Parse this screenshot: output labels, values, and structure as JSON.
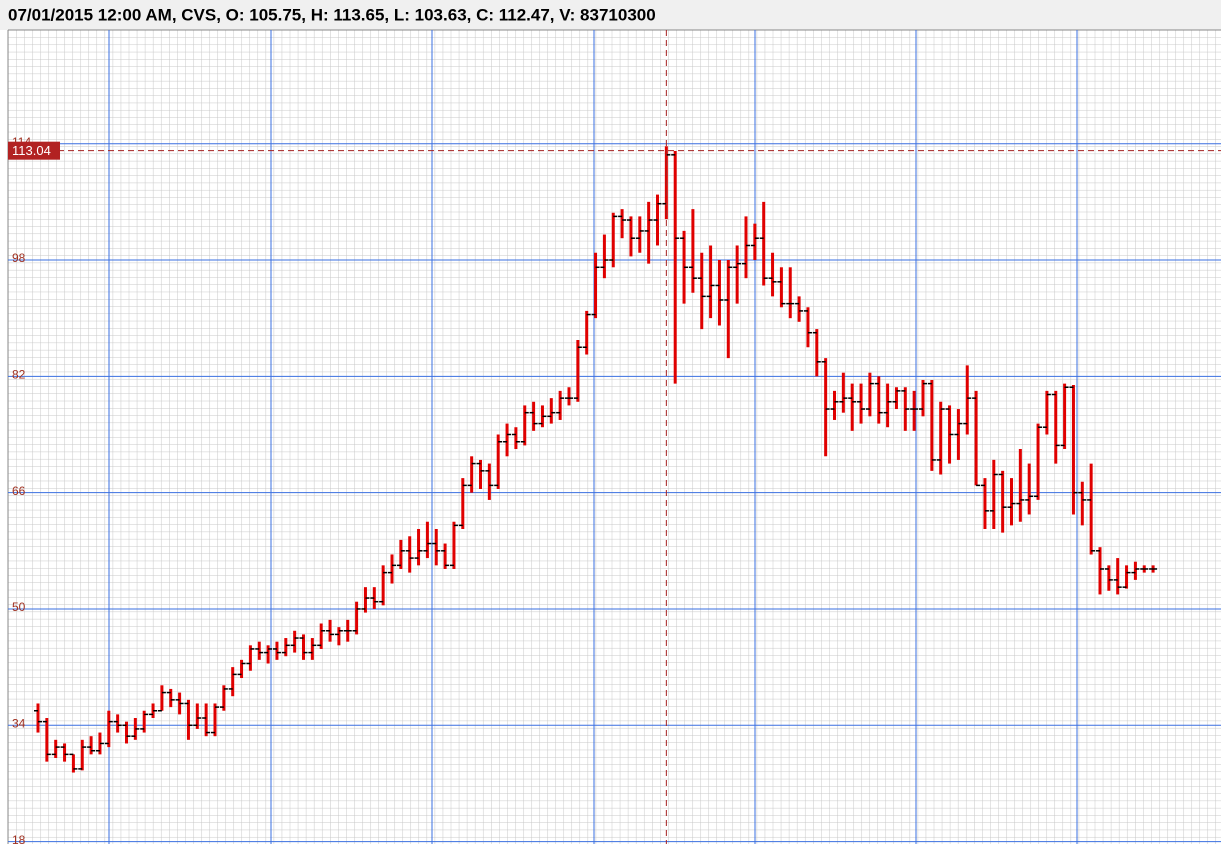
{
  "chart_data": {
    "type": "ohlc",
    "header": "07/01/2015 12:00 AM, CVS, O: 105.75, H: 113.65, L: 103.63, C: 112.47, V: 83710300",
    "color": "#e00000",
    "ylim": [
      17.67,
      129.64
    ],
    "yticks": [
      18,
      34,
      50,
      66,
      82,
      98,
      114
    ],
    "grid": true,
    "crosshair": {
      "value": 113.04,
      "bar": 71
    },
    "open": [
      36,
      34.5,
      30,
      31,
      30,
      28,
      31,
      30.5,
      31.5,
      34.5,
      34,
      32.5,
      33.5,
      35.5,
      36,
      38.5,
      37.5,
      37,
      34,
      35,
      33,
      36.5,
      39,
      41,
      42.5,
      44.5,
      44,
      44.5,
      44,
      45,
      46,
      44,
      45,
      47,
      46.5,
      47,
      47,
      50,
      51.5,
      51,
      55,
      56,
      58,
      57,
      58,
      59,
      58,
      56,
      61.5,
      67,
      70,
      69,
      67,
      73,
      74,
      73,
      77,
      75.5,
      76.5,
      77,
      79,
      79,
      86,
      90.5,
      97,
      98,
      104,
      103.5,
      101,
      102,
      103.5,
      105.75,
      112.47,
      101,
      97,
      95.5,
      93,
      94.5,
      92.5,
      97,
      97.5,
      100,
      101,
      95.5,
      95,
      92,
      92,
      91,
      88,
      84,
      77.5,
      78.5,
      79,
      78.5,
      77.5,
      81,
      77,
      78.5,
      80,
      77.5,
      77.5,
      81,
      70.5,
      77.5,
      74,
      75.5,
      79,
      67,
      63.5,
      68.5,
      64,
      64.5,
      65,
      65.5,
      75,
      79.5,
      72.5,
      80.5,
      66,
      65,
      58,
      55.5,
      54,
      53,
      55,
      55.5,
      55.5
    ],
    "high": [
      37,
      35,
      32,
      31.5,
      30,
      32,
      32.5,
      33,
      36,
      35.5,
      34.5,
      35,
      36,
      37,
      39.5,
      39,
      38.5,
      37.5,
      37,
      37,
      37,
      39.5,
      42,
      43,
      45,
      45.5,
      45,
      45.5,
      46,
      47,
      46.5,
      46,
      48,
      48.5,
      47.5,
      48.5,
      51,
      53,
      53,
      56,
      57.5,
      59.5,
      60,
      61,
      62,
      61,
      59,
      62,
      68,
      71,
      70.5,
      70,
      74,
      75.5,
      75,
      78,
      78.5,
      78,
      79,
      80,
      80.5,
      87,
      91,
      99,
      101.5,
      104.5,
      105,
      104,
      104,
      106,
      107,
      113.65,
      113,
      102,
      105,
      99,
      100,
      98,
      98,
      100,
      104,
      103,
      106,
      99,
      97,
      97,
      93,
      91.5,
      88.5,
      84.5,
      80,
      82.5,
      81,
      81,
      82.5,
      82,
      81,
      80.5,
      80.5,
      80,
      81.5,
      81.5,
      78.5,
      78,
      77.5,
      83.5,
      80,
      68,
      70.5,
      69,
      68,
      72,
      70,
      75.5,
      80,
      80,
      81,
      80.8,
      67.5,
      70,
      58.5,
      56,
      57,
      56,
      56.5,
      56,
      56
    ],
    "low": [
      33,
      29,
      29.5,
      29,
      27.5,
      27.8,
      30,
      30,
      31,
      33,
      31.5,
      32,
      33,
      35,
      36,
      36.5,
      35.5,
      32,
      33.5,
      32.5,
      32.5,
      36,
      38,
      40.5,
      41.5,
      43,
      42.5,
      43,
      43.5,
      44,
      43,
      43,
      44.5,
      45.5,
      45,
      45.5,
      46.5,
      49.5,
      50,
      50.5,
      53.5,
      55.5,
      55,
      56,
      57,
      56,
      55.5,
      55.5,
      61,
      66,
      66.5,
      65,
      66.5,
      71,
      72,
      72.5,
      74.5,
      75,
      75.5,
      76,
      78,
      78.5,
      85,
      90,
      95.5,
      97,
      101,
      98.5,
      99,
      97.5,
      100,
      103.63,
      81,
      92,
      93.5,
      88.5,
      90,
      89,
      84.5,
      92,
      95.5,
      98,
      94.5,
      93,
      91.5,
      90,
      89.5,
      86,
      82,
      71,
      76,
      77,
      74.5,
      75.5,
      76.5,
      75.5,
      75,
      77.5,
      74.5,
      74.5,
      76.5,
      69,
      68.5,
      70,
      70.5,
      74,
      67,
      61,
      61,
      60.5,
      61.5,
      62,
      63,
      65,
      74,
      70,
      72,
      63,
      61.5,
      57.5,
      52,
      52.5,
      52,
      52.8,
      54,
      55,
      55
    ],
    "close": [
      34.5,
      30,
      31,
      30,
      28,
      31,
      30.5,
      31.5,
      34.5,
      34,
      32.5,
      33.5,
      35.5,
      36,
      38.5,
      37.5,
      37,
      34,
      35,
      33,
      36.5,
      39,
      41,
      42.5,
      44.5,
      44,
      44.5,
      44,
      45,
      46,
      44,
      45,
      47,
      46.5,
      47,
      47,
      50,
      51.5,
      51,
      55,
      56,
      58,
      57,
      58,
      59,
      58,
      56,
      61.5,
      67,
      70,
      69,
      67,
      73,
      74,
      73,
      77,
      75.5,
      76.5,
      77,
      79,
      79,
      86,
      90.5,
      97,
      98,
      104,
      103.5,
      101,
      102,
      103.5,
      105.75,
      112.47,
      101,
      97,
      95.5,
      93,
      94.5,
      92.5,
      97,
      97.5,
      100,
      101,
      95.5,
      95,
      92,
      92,
      91,
      88,
      84,
      77.5,
      78.5,
      79,
      78.5,
      77.5,
      81,
      77,
      78.5,
      80,
      77.5,
      77.5,
      81,
      70.5,
      77.5,
      74,
      75.5,
      79,
      67,
      63.5,
      68.5,
      64,
      64.5,
      65,
      65.5,
      75,
      79.5,
      72.5,
      80.5,
      66,
      65,
      58,
      55.5,
      54,
      53,
      55,
      55.5,
      55.5,
      55.5
    ]
  }
}
